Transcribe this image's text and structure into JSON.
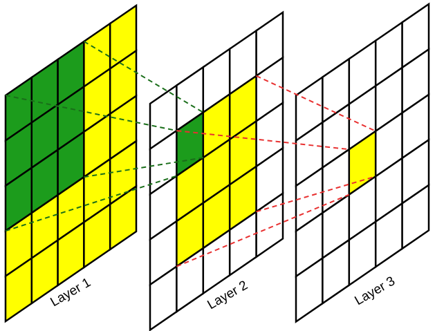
{
  "layers": [
    {
      "label": "Layer 1"
    },
    {
      "label": "Layer 2"
    },
    {
      "label": "Layer 3"
    }
  ]
}
